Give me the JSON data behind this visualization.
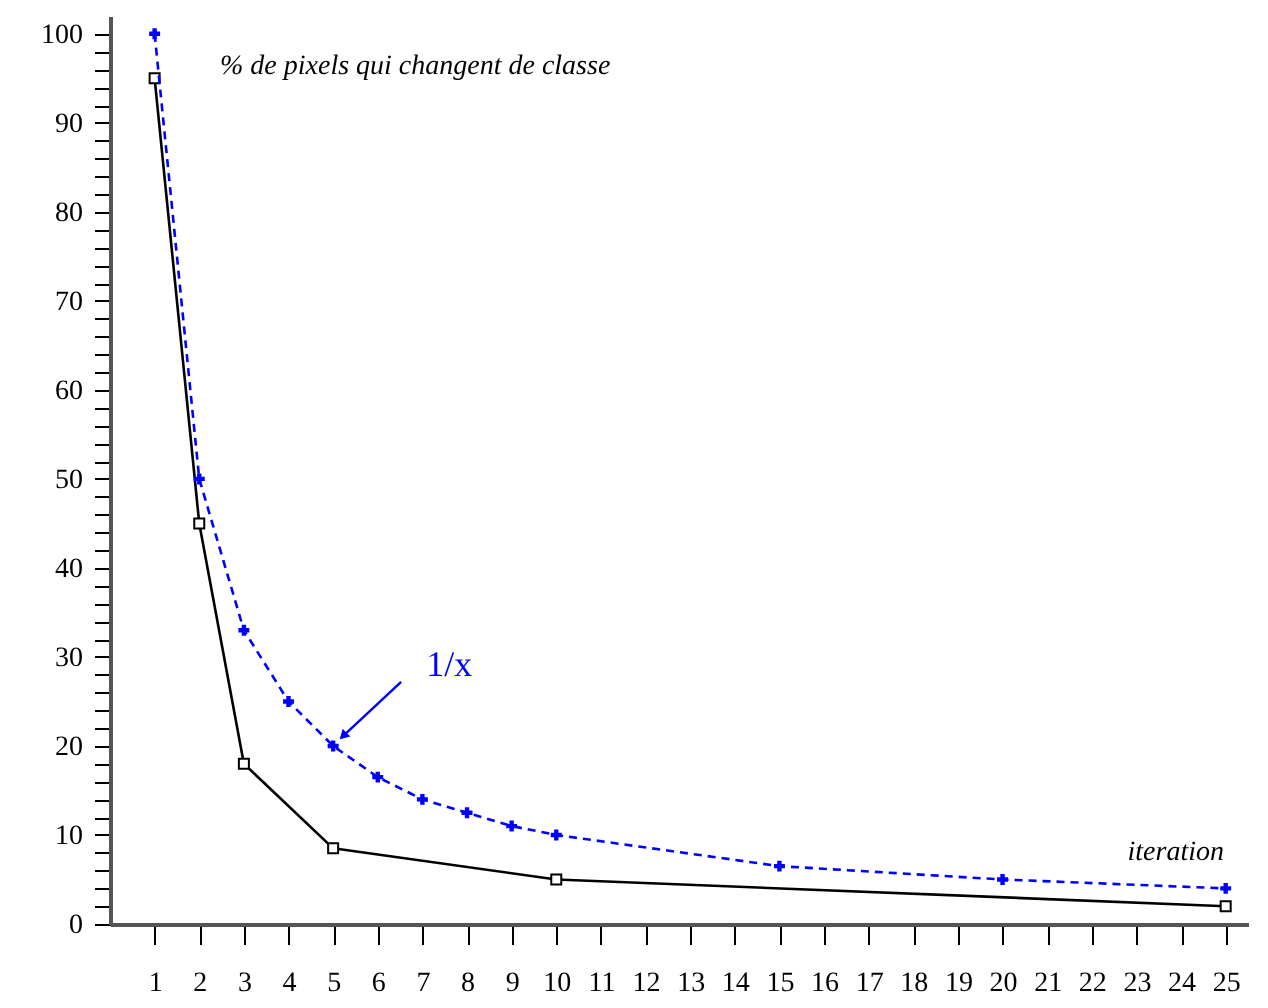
{
  "chart_data": {
    "type": "line",
    "ylabel": "% de pixels qui changent de classe",
    "xlabel": "iteration",
    "legend": false,
    "grid": false,
    "xlim": [
      0,
      25.5
    ],
    "xticks": [
      1,
      2,
      3,
      4,
      5,
      6,
      7,
      8,
      9,
      10,
      11,
      12,
      13,
      14,
      15,
      16,
      17,
      18,
      19,
      20,
      21,
      22,
      23,
      24,
      25
    ],
    "ylim": [
      0,
      102
    ],
    "yticks": [
      0,
      {
        "value": 2,
        "label": null
      },
      {
        "value": 4,
        "label": null
      },
      {
        "value": 6,
        "label": null
      },
      {
        "value": 8,
        "label": null
      },
      10,
      {
        "value": 12,
        "label": null
      },
      {
        "value": 14,
        "label": null
      },
      {
        "value": 16,
        "label": null
      },
      {
        "value": 18,
        "label": null
      },
      20,
      {
        "value": 22,
        "label": null
      },
      {
        "value": 24,
        "label": null
      },
      {
        "value": 26,
        "label": null
      },
      {
        "value": 28,
        "label": null
      },
      30,
      {
        "value": 32,
        "label": null
      },
      {
        "value": 34,
        "label": null
      },
      {
        "value": 36,
        "label": null
      },
      {
        "value": 38,
        "label": null
      },
      40,
      {
        "value": 42,
        "label": null
      },
      {
        "value": 44,
        "label": null
      },
      {
        "value": 46,
        "label": null
      },
      {
        "value": 48,
        "label": null
      },
      50,
      {
        "value": 52,
        "label": null
      },
      {
        "value": 54,
        "label": null
      },
      {
        "value": 56,
        "label": null
      },
      {
        "value": 58,
        "label": null
      },
      60,
      {
        "value": 62,
        "label": null
      },
      {
        "value": 64,
        "label": null
      },
      {
        "value": 66,
        "label": null
      },
      {
        "value": 68,
        "label": null
      },
      70,
      {
        "value": 72,
        "label": null
      },
      {
        "value": 74,
        "label": null
      },
      {
        "value": 76,
        "label": null
      },
      {
        "value": 78,
        "label": null
      },
      80,
      {
        "value": 82,
        "label": null
      },
      {
        "value": 84,
        "label": null
      },
      {
        "value": 86,
        "label": null
      },
      {
        "value": 88,
        "label": null
      },
      90,
      {
        "value": 92,
        "label": null
      },
      {
        "value": 94,
        "label": null
      },
      {
        "value": 96,
        "label": null
      },
      {
        "value": 98,
        "label": null
      },
      100
    ],
    "series": [
      {
        "color": "#000000",
        "marker": "square",
        "line_style": "solid",
        "x": [
          1,
          2,
          3,
          5,
          10,
          25
        ],
        "values": [
          95,
          45,
          18,
          8.5,
          5,
          2
        ]
      },
      {
        "color": "#0000ff",
        "marker": "cross",
        "line_style": "dashed",
        "x": [
          1,
          2,
          3,
          4,
          5,
          6,
          7,
          8,
          9,
          10,
          15,
          20,
          25
        ],
        "values": [
          100,
          50,
          33,
          25,
          20,
          16.5,
          14,
          12.5,
          11,
          10,
          6.5,
          5,
          4
        ]
      }
    ],
    "annotations": [
      {
        "text": "1/x",
        "x": 5,
        "y": 20
      }
    ]
  }
}
